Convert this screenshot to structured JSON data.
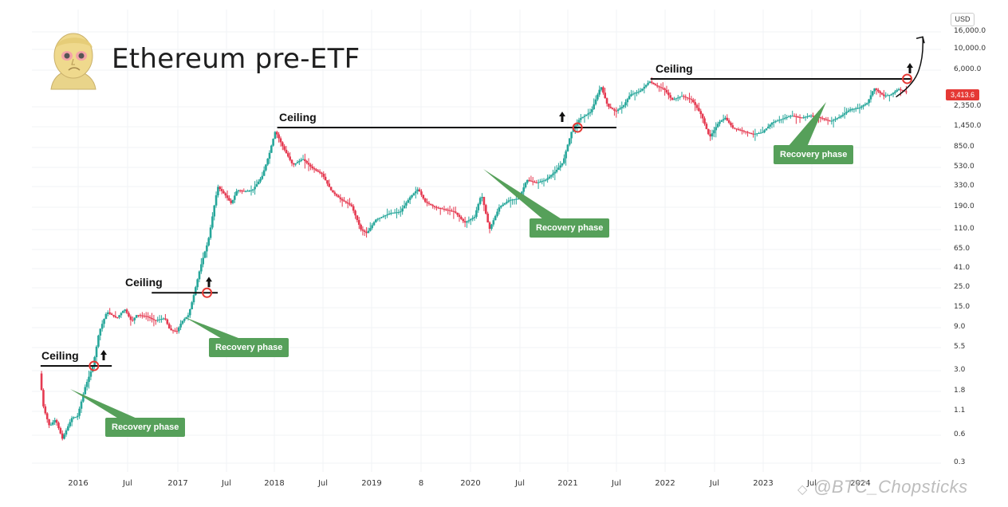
{
  "title": "Ethereum pre-ETF",
  "chart_data": {
    "type": "candlestick",
    "scale": "log",
    "unit": "USD",
    "current_price": "3,413.6",
    "y_ticks": [
      "16,000.0",
      "10,000.0",
      "6,000.0",
      "2,350.0",
      "1,450.0",
      "850.0",
      "530.0",
      "330.0",
      "190.0",
      "110.0",
      "65.0",
      "41.0",
      "25.0",
      "15.0",
      "9.0",
      "5.5",
      "3.0",
      "1.8",
      "1.1",
      "0.6",
      "0.3"
    ],
    "x_ticks": [
      "2016",
      "Jul",
      "2017",
      "Jul",
      "2018",
      "Jul",
      "2019",
      "8",
      "2020",
      "Jul",
      "2021",
      "Jul",
      "2022",
      "Jul",
      "2023",
      "Jul",
      "2024"
    ],
    "ceilings": [
      {
        "label": "Ceiling",
        "level": 3.4
      },
      {
        "label": "Ceiling",
        "level": 22
      },
      {
        "label": "Ceiling",
        "level": 1420
      },
      {
        "label": "Ceiling",
        "level": 4800
      }
    ],
    "phases": [
      {
        "label": "Recovery phase"
      },
      {
        "label": "Recovery phase"
      },
      {
        "label": "Recovery phase"
      },
      {
        "label": "Recovery phase"
      }
    ],
    "breakouts": [
      3.4,
      22,
      1420,
      4800
    ],
    "price_path": [
      [
        2015.62,
        2.8
      ],
      [
        2015.66,
        1.2
      ],
      [
        2015.72,
        0.75
      ],
      [
        2015.78,
        0.9
      ],
      [
        2015.85,
        0.55
      ],
      [
        2015.95,
        0.95
      ],
      [
        2016.0,
        0.95
      ],
      [
        2016.08,
        2.0
      ],
      [
        2016.16,
        3.4
      ],
      [
        2016.22,
        8.0
      ],
      [
        2016.3,
        13.5
      ],
      [
        2016.4,
        11.5
      ],
      [
        2016.48,
        14.5
      ],
      [
        2016.55,
        10.5
      ],
      [
        2016.6,
        12.5
      ],
      [
        2016.7,
        12.0
      ],
      [
        2016.78,
        10.8
      ],
      [
        2016.88,
        11.5
      ],
      [
        2016.93,
        8.5
      ],
      [
        2017.0,
        8.2
      ],
      [
        2017.05,
        10.5
      ],
      [
        2017.12,
        12.5
      ],
      [
        2017.17,
        20.0
      ],
      [
        2017.24,
        42.0
      ],
      [
        2017.32,
        80.0
      ],
      [
        2017.42,
        330.0
      ],
      [
        2017.5,
        260.0
      ],
      [
        2017.56,
        210.0
      ],
      [
        2017.62,
        300.0
      ],
      [
        2017.7,
        290.0
      ],
      [
        2017.78,
        300.0
      ],
      [
        2017.88,
        420.0
      ],
      [
        2017.96,
        750.0
      ],
      [
        2018.02,
        1300.0
      ],
      [
        2018.1,
        850.0
      ],
      [
        2018.2,
        560.0
      ],
      [
        2018.3,
        650.0
      ],
      [
        2018.4,
        520.0
      ],
      [
        2018.5,
        450.0
      ],
      [
        2018.6,
        290.0
      ],
      [
        2018.7,
        230.0
      ],
      [
        2018.8,
        200.0
      ],
      [
        2018.9,
        110.0
      ],
      [
        2018.96,
        100.0
      ],
      [
        2019.05,
        140.0
      ],
      [
        2019.2,
        165.0
      ],
      [
        2019.3,
        170.0
      ],
      [
        2019.4,
        250.0
      ],
      [
        2019.48,
        310.0
      ],
      [
        2019.55,
        220.0
      ],
      [
        2019.65,
        190.0
      ],
      [
        2019.75,
        180.0
      ],
      [
        2019.85,
        170.0
      ],
      [
        2019.95,
        130.0
      ],
      [
        2020.05,
        150.0
      ],
      [
        2020.12,
        270.0
      ],
      [
        2020.2,
        110.0
      ],
      [
        2020.3,
        190.0
      ],
      [
        2020.4,
        230.0
      ],
      [
        2020.5,
        240.0
      ],
      [
        2020.58,
        390.0
      ],
      [
        2020.68,
        360.0
      ],
      [
        2020.78,
        390.0
      ],
      [
        2020.88,
        480.0
      ],
      [
        2020.96,
        600.0
      ],
      [
        2021.05,
        1300.0
      ],
      [
        2021.13,
        1750.0
      ],
      [
        2021.25,
        2100.0
      ],
      [
        2021.35,
        4000.0
      ],
      [
        2021.42,
        2400.0
      ],
      [
        2021.5,
        2100.0
      ],
      [
        2021.58,
        2400.0
      ],
      [
        2021.65,
        3200.0
      ],
      [
        2021.75,
        3500.0
      ],
      [
        2021.85,
        4500.0
      ],
      [
        2021.92,
        4000.0
      ],
      [
        2022.0,
        3700.0
      ],
      [
        2022.08,
        2800.0
      ],
      [
        2022.18,
        3100.0
      ],
      [
        2022.28,
        2800.0
      ],
      [
        2022.38,
        1900.0
      ],
      [
        2022.46,
        1100.0
      ],
      [
        2022.55,
        1600.0
      ],
      [
        2022.62,
        1800.0
      ],
      [
        2022.7,
        1400.0
      ],
      [
        2022.8,
        1300.0
      ],
      [
        2022.9,
        1200.0
      ],
      [
        2023.0,
        1250.0
      ],
      [
        2023.1,
        1600.0
      ],
      [
        2023.2,
        1750.0
      ],
      [
        2023.3,
        1900.0
      ],
      [
        2023.4,
        1800.0
      ],
      [
        2023.5,
        1900.0
      ],
      [
        2023.6,
        1800.0
      ],
      [
        2023.7,
        1650.0
      ],
      [
        2023.8,
        1850.0
      ],
      [
        2023.9,
        2200.0
      ],
      [
        2024.0,
        2300.0
      ],
      [
        2024.08,
        2600.0
      ],
      [
        2024.15,
        3800.0
      ],
      [
        2024.25,
        3100.0
      ],
      [
        2024.32,
        3200.0
      ],
      [
        2024.4,
        3700.0
      ],
      [
        2024.48,
        3413.6
      ]
    ],
    "projection": [
      [
        2024.48,
        3413.6
      ],
      [
        2024.55,
        4500.0
      ],
      [
        2024.6,
        6000.0
      ],
      [
        2024.64,
        14000.0
      ]
    ]
  },
  "watermark": "@BTC_Chopsticks"
}
